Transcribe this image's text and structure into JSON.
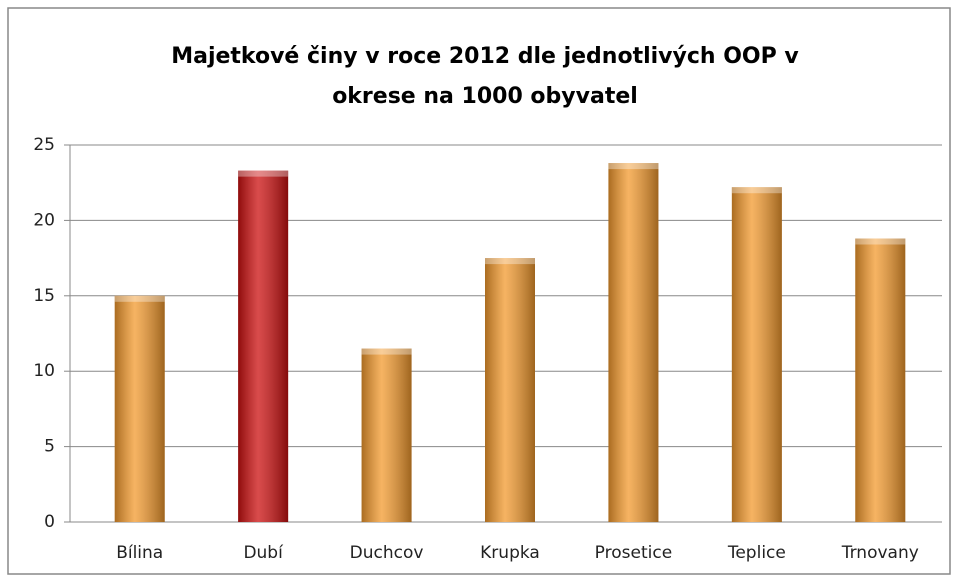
{
  "chart_data": {
    "type": "bar",
    "title": [
      "Majetkové činy v roce 2012 dle jednotlivých OOP v",
      "okrese na 1000 obyvatel"
    ],
    "categories": [
      "Bílina",
      "Dubí",
      "Duchcov",
      "Krupka",
      "Prosetice",
      "Teplice",
      "Trnovany"
    ],
    "values": [
      15,
      23.3,
      11.5,
      17.5,
      23.8,
      22.2,
      18.8
    ],
    "colors": [
      "#f39a2e",
      "#cc1010",
      "#f39a2e",
      "#f39a2e",
      "#f39a2e",
      "#f39a2e",
      "#f39a2e"
    ],
    "ylim": [
      0,
      25
    ],
    "yticks": [
      0,
      5,
      10,
      15,
      20,
      25
    ],
    "grid": true
  }
}
